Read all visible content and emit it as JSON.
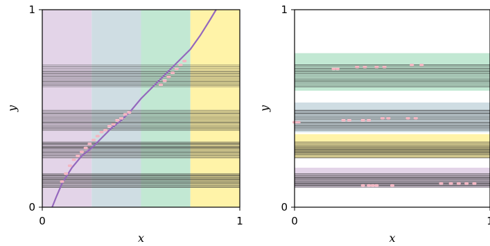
{
  "chart_data": [
    {
      "type": "line",
      "title": "",
      "xlabel": "x",
      "ylabel": "y",
      "xlim": [
        0,
        1
      ],
      "ylim": [
        0,
        1
      ],
      "xticks": [
        "0",
        "1"
      ],
      "yticks": [
        "0",
        "1"
      ],
      "grid": false,
      "region_colors": [
        "#e3d4e8",
        "#cfdde3",
        "#c2e8d3",
        "#fff3a8"
      ],
      "regions_x": [
        [
          0,
          0.25
        ],
        [
          0.25,
          0.5
        ],
        [
          0.5,
          0.75
        ],
        [
          0.75,
          1.0
        ]
      ],
      "curve_color": "#9467bd",
      "curve": {
        "x": [
          0.05,
          0.07,
          0.1,
          0.15,
          0.2,
          0.25,
          0.3,
          0.35,
          0.4,
          0.45,
          0.5,
          0.55,
          0.6,
          0.65,
          0.7,
          0.75,
          0.8,
          0.85,
          0.88
        ],
        "y": [
          0.0,
          0.05,
          0.12,
          0.2,
          0.26,
          0.3,
          0.35,
          0.4,
          0.44,
          0.49,
          0.55,
          0.6,
          0.65,
          0.7,
          0.75,
          0.8,
          0.87,
          0.95,
          1.0
        ]
      },
      "points_color": "#f4b6c2",
      "points": {
        "x": [
          0.1,
          0.12,
          0.14,
          0.16,
          0.18,
          0.2,
          0.22,
          0.24,
          0.26,
          0.28,
          0.3,
          0.32,
          0.34,
          0.36,
          0.38,
          0.4,
          0.42,
          0.44,
          0.6,
          0.62,
          0.64,
          0.66,
          0.68,
          0.7,
          0.72
        ],
        "y": [
          0.13,
          0.17,
          0.21,
          0.24,
          0.26,
          0.28,
          0.3,
          0.32,
          0.34,
          0.36,
          0.38,
          0.39,
          0.41,
          0.42,
          0.44,
          0.45,
          0.47,
          0.48,
          0.62,
          0.64,
          0.66,
          0.68,
          0.7,
          0.72,
          0.74
        ]
      },
      "line_bands": [
        [
          0.1,
          0.17
        ],
        [
          0.25,
          0.33
        ],
        [
          0.39,
          0.49
        ],
        [
          0.61,
          0.72
        ]
      ],
      "line_color": "#333333"
    },
    {
      "type": "scatter",
      "title": "",
      "xlabel": "x",
      "ylabel": "y",
      "xlim": [
        0,
        1
      ],
      "ylim": [
        0,
        1
      ],
      "xticks": [
        "0",
        "1"
      ],
      "yticks": [
        "0",
        "1"
      ],
      "grid": false,
      "horizontal_regions": [
        {
          "y": [
            0.1,
            0.2
          ],
          "color": "#e3d4e8"
        },
        {
          "y": [
            0.25,
            0.37
          ],
          "color": "#fff3a8"
        },
        {
          "y": [
            0.38,
            0.53
          ],
          "color": "#cfdde3"
        },
        {
          "y": [
            0.59,
            0.78
          ],
          "color": "#c2e8d3"
        }
      ],
      "line_bands": [
        [
          0.1,
          0.17
        ],
        [
          0.25,
          0.33
        ],
        [
          0.39,
          0.49
        ],
        [
          0.61,
          0.72
        ]
      ],
      "line_color": "#333333",
      "points_color": "#f4b6c2",
      "points": {
        "x": [
          0.35,
          0.38,
          0.4,
          0.42,
          0.5,
          0.75,
          0.8,
          0.84,
          0.88,
          0.92,
          0.0,
          0.02,
          0.25,
          0.28,
          0.35,
          0.38,
          0.45,
          0.48,
          0.58,
          0.62,
          0.2,
          0.22,
          0.32,
          0.36,
          0.42,
          0.46,
          0.6,
          0.65
        ],
        "y": [
          0.11,
          0.11,
          0.11,
          0.11,
          0.11,
          0.12,
          0.12,
          0.12,
          0.12,
          0.12,
          0.43,
          0.43,
          0.44,
          0.44,
          0.44,
          0.44,
          0.45,
          0.45,
          0.45,
          0.45,
          0.7,
          0.7,
          0.71,
          0.71,
          0.71,
          0.71,
          0.72,
          0.72
        ]
      }
    }
  ]
}
